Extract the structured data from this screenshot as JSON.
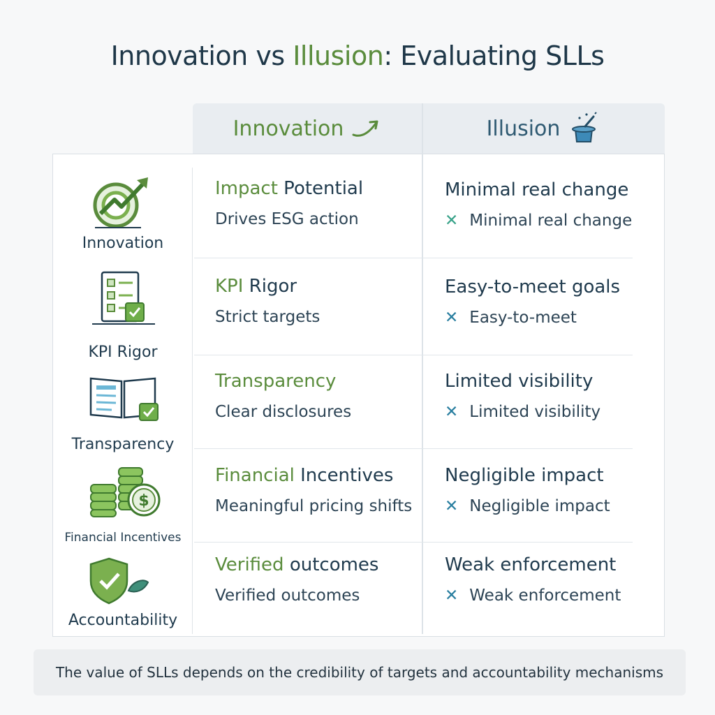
{
  "title": {
    "part1": "Innovation vs ",
    "part2": "Illusion",
    "part3": ": Evaluating SLLs"
  },
  "columns": {
    "innovation": "Innovation",
    "illusion": "Illusion"
  },
  "rows": [
    {
      "category": "Innovation",
      "icon": "target-growth-arrow-icon",
      "innov_head_a": "Impact",
      "innov_head_b": " Potential",
      "innov_sub": "Drives ESG action",
      "illus_head": "Minimal real change",
      "illus_sub": "Minimal real change"
    },
    {
      "category": "KPI Rigor",
      "icon": "checklist-icon",
      "innov_head_a": "KPI",
      "innov_head_b": " Rigor",
      "innov_sub": "Strict targets",
      "illus_head": "Easy-to-meet goals",
      "illus_sub": "Easy-to-meet"
    },
    {
      "category": "Transparency",
      "icon": "open-book-icon",
      "innov_head_a": "Transparency",
      "innov_head_b": "",
      "innov_sub": "Clear disclosures",
      "illus_head": "Limited visibility",
      "illus_sub": "Limited visibility"
    },
    {
      "category": "Financial Incentives",
      "icon": "coins-dollar-icon",
      "innov_head_a": "Financial",
      "innov_head_b": " Incentives",
      "innov_sub": "Meaningful pricing shifts",
      "illus_head": "Negligible impact",
      "illus_sub": "Negligible impact"
    },
    {
      "category": "Accountability",
      "icon": "shield-check-icon",
      "innov_head_a": "Verified",
      "innov_head_b": " outcomes",
      "innov_sub": "Verified outcomes",
      "illus_head": "Weak enforcement",
      "illus_sub": "Weak enforcement"
    }
  ],
  "cross_symbol": "✕",
  "footer": "The value of SLLs depends on the credibility of targets and accountability mechanisms",
  "colors": {
    "green": "#5a8c3c",
    "navy": "#1f3a4d",
    "cross_blue": "#2a7fa0",
    "cross_teal": "#3aa38a"
  }
}
